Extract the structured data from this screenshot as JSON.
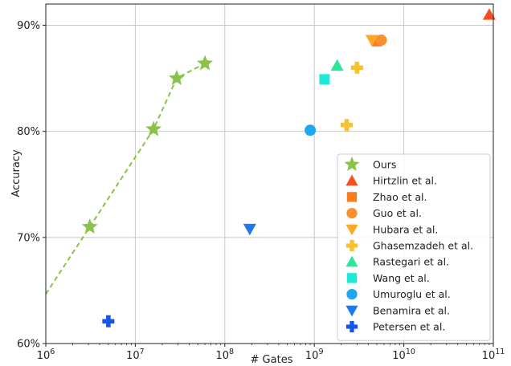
{
  "chart_data": {
    "type": "scatter",
    "title": "",
    "xlabel": "# Gates",
    "ylabel": "Accuracy",
    "xscale": "log",
    "xlim": [
      1000000,
      100000000000
    ],
    "ylim": [
      0.6,
      0.92
    ],
    "grid": true,
    "legend_position": "bottom-right",
    "x_ticks": [
      {
        "value": 1000000,
        "base": "10",
        "exp": "6"
      },
      {
        "value": 10000000,
        "base": "10",
        "exp": "7"
      },
      {
        "value": 100000000,
        "base": "10",
        "exp": "8"
      },
      {
        "value": 1000000000,
        "base": "10",
        "exp": "9"
      },
      {
        "value": 10000000000,
        "base": "10",
        "exp": "10"
      },
      {
        "value": 100000000000,
        "base": "10",
        "exp": "11"
      }
    ],
    "y_ticks": [
      {
        "value": 0.6,
        "label": "60%"
      },
      {
        "value": 0.7,
        "label": "70%"
      },
      {
        "value": 0.8,
        "label": "80%"
      },
      {
        "value": 0.9,
        "label": "90%"
      }
    ],
    "series": [
      {
        "name": "Ours",
        "marker": "star",
        "color": "#8bc34a",
        "connected": true,
        "extend_to_xmin": true,
        "points": [
          [
            3100000,
            0.71
          ],
          [
            16000000,
            0.802
          ],
          [
            29000000,
            0.85
          ],
          [
            60000000,
            0.864
          ]
        ]
      },
      {
        "name": "Hirtzlin et al.",
        "marker": "triangle-up",
        "color": "#f4511e",
        "points": [
          [
            90000000000,
            0.91
          ]
        ]
      },
      {
        "name": "Zhao et al.",
        "marker": "square",
        "color": "#f57c1f",
        "points": [
          [
            5000000000,
            0.885
          ]
        ]
      },
      {
        "name": "Guo et al.",
        "marker": "circle",
        "color": "#f9912e",
        "points": [
          [
            5600000000,
            0.886
          ]
        ]
      },
      {
        "name": "Hubara et al.",
        "marker": "triangle-down",
        "color": "#ffa726",
        "points": [
          [
            4400000000,
            0.886
          ]
        ]
      },
      {
        "name": "Ghasemzadeh et al.",
        "marker": "plus",
        "color": "#fbc02d",
        "points": [
          [
            3000000000,
            0.86
          ],
          [
            2300000000,
            0.806
          ]
        ]
      },
      {
        "name": "Rastegari et al.",
        "marker": "triangle-up",
        "color": "#2ee69a",
        "points": [
          [
            1800000000,
            0.862
          ]
        ]
      },
      {
        "name": "Wang et al.",
        "marker": "square",
        "color": "#1de9d6",
        "points": [
          [
            1300000000,
            0.849
          ]
        ]
      },
      {
        "name": "Umuroglu et al.",
        "marker": "circle",
        "color": "#1ea7f0",
        "points": [
          [
            900000000,
            0.801
          ]
        ]
      },
      {
        "name": "Benamira et al.",
        "marker": "triangle-down",
        "color": "#1e78f0",
        "points": [
          [
            190000000,
            0.708
          ]
        ]
      },
      {
        "name": "Petersen et al.",
        "marker": "plus",
        "color": "#1655e6",
        "points": [
          [
            5000000,
            0.621
          ]
        ]
      }
    ]
  }
}
